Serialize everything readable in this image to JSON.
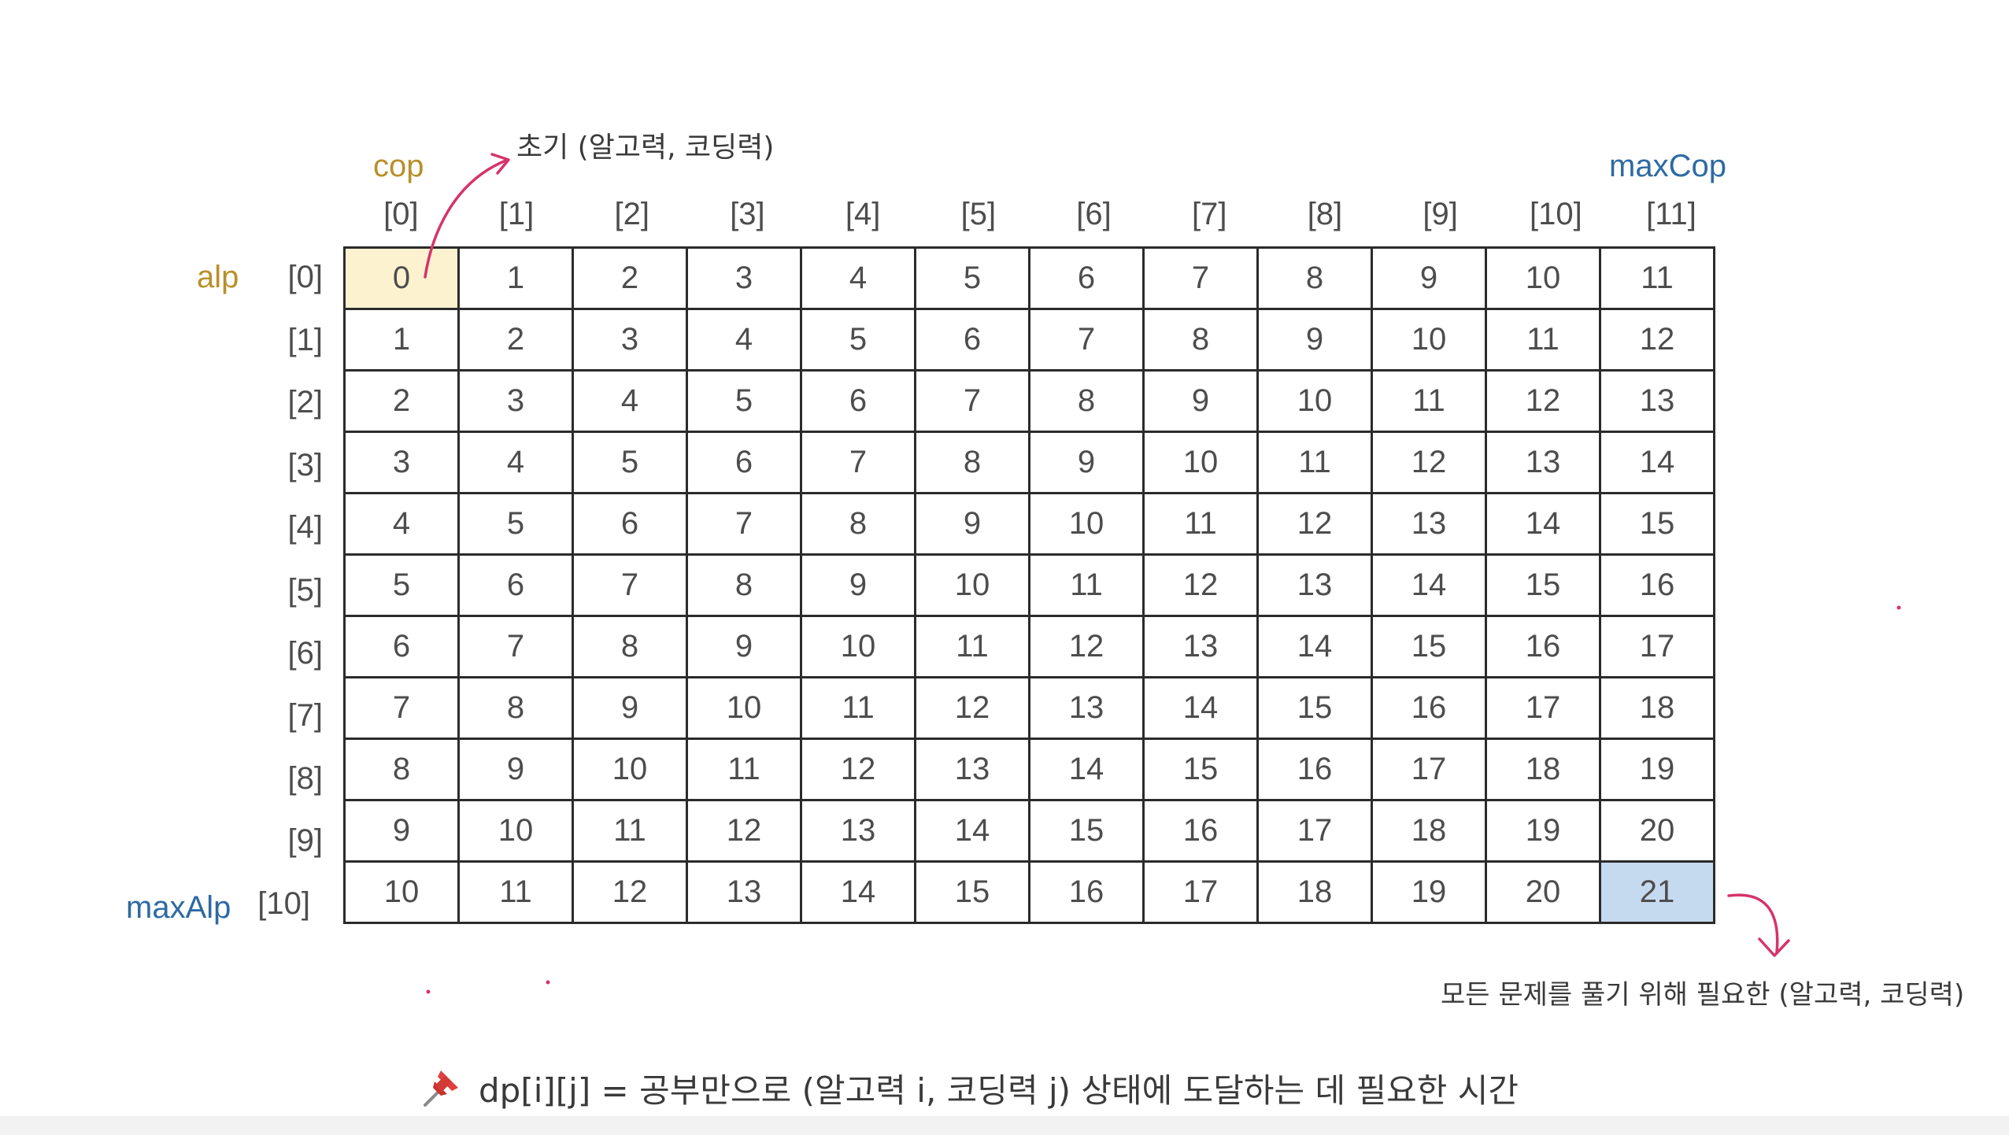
{
  "labels": {
    "cop": "cop",
    "max_cop": "maxCop",
    "alp": "alp",
    "max_alp": "maxAlp"
  },
  "col_indices": [
    "[0]",
    "[1]",
    "[2]",
    "[3]",
    "[4]",
    "[5]",
    "[6]",
    "[7]",
    "[8]",
    "[9]",
    "[10]",
    "[11]"
  ],
  "row_indices": [
    "[0]",
    "[1]",
    "[2]",
    "[3]",
    "[4]",
    "[5]",
    "[6]",
    "[7]",
    "[8]",
    "[9]",
    "[10]"
  ],
  "grid": [
    [
      0,
      1,
      2,
      3,
      4,
      5,
      6,
      7,
      8,
      9,
      10,
      11
    ],
    [
      1,
      2,
      3,
      4,
      5,
      6,
      7,
      8,
      9,
      10,
      11,
      12
    ],
    [
      2,
      3,
      4,
      5,
      6,
      7,
      8,
      9,
      10,
      11,
      12,
      13
    ],
    [
      3,
      4,
      5,
      6,
      7,
      8,
      9,
      10,
      11,
      12,
      13,
      14
    ],
    [
      4,
      5,
      6,
      7,
      8,
      9,
      10,
      11,
      12,
      13,
      14,
      15
    ],
    [
      5,
      6,
      7,
      8,
      9,
      10,
      11,
      12,
      13,
      14,
      15,
      16
    ],
    [
      6,
      7,
      8,
      9,
      10,
      11,
      12,
      13,
      14,
      15,
      16,
      17
    ],
    [
      7,
      8,
      9,
      10,
      11,
      12,
      13,
      14,
      15,
      16,
      17,
      18
    ],
    [
      8,
      9,
      10,
      11,
      12,
      13,
      14,
      15,
      16,
      17,
      18,
      19
    ],
    [
      9,
      10,
      11,
      12,
      13,
      14,
      15,
      16,
      17,
      18,
      19,
      20
    ],
    [
      10,
      11,
      12,
      13,
      14,
      15,
      16,
      17,
      18,
      19,
      20,
      21
    ]
  ],
  "highlights": {
    "start_cell": [
      0,
      0
    ],
    "goal_cell": [
      10,
      11
    ],
    "start_color": "#fdf2d0",
    "goal_color": "#c5d9ef"
  },
  "annotations": {
    "initial": "초기 (알고력, 코딩력)",
    "goal": "모든 문제를 풀기 위해 필요한 (알고력, 코딩력)",
    "arrow_color": "#d6336c"
  },
  "caption": {
    "icon": "pushpin-icon",
    "text": "dp[i][j] = 공부만으로 (알고력 i, 코딩력 j) 상태에 도달하는 데 필요한 시간"
  },
  "colors": {
    "gold_label": "#b8902a",
    "blue_label": "#2f6aa3",
    "grid_line": "#2b2b2b"
  }
}
